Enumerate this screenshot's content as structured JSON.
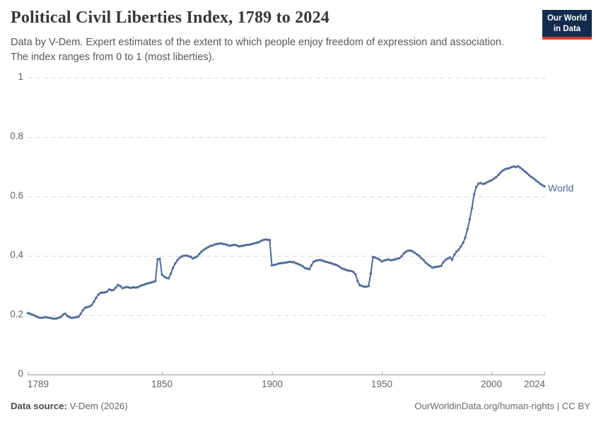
{
  "header": {
    "title": "Political Civil Liberties Index, 1789 to 2024",
    "subtitle_line1": "Data by V-Dem. Expert estimates of the extent to which people enjoy freedom of expression and association.",
    "subtitle_line2": "The index ranges from 0 to 1 (most liberties).",
    "logo": {
      "line1": "Our World",
      "line2": "in Data",
      "bg_color": "#132c4d",
      "accent_color": "#d63c2f"
    }
  },
  "footer": {
    "source_label": "Data source:",
    "source_value": " V-Dem (2026)",
    "link_text": "OurWorldinData.org/human-rights | CC BY"
  },
  "chart_data": {
    "type": "line",
    "title": "Political Civil Liberties Index, 1789 to 2024",
    "xlabel": "",
    "ylabel": "",
    "xlim": [
      1789,
      2024
    ],
    "ylim": [
      0,
      1
    ],
    "grid": "horizontal-dashed",
    "legend_position": "end-of-line",
    "yticks": [
      "1",
      "0.8",
      "0.6",
      "0.4",
      "0.2",
      "0"
    ],
    "xticks": [
      "1789",
      "1850",
      "1900",
      "1950",
      "2000",
      "2024"
    ],
    "line_color": "#4c6a9c",
    "marker": "dot-every-year",
    "series": [
      {
        "name": "World",
        "x_start_year": 1789,
        "x_step": 1,
        "values": [
          0.207,
          0.205,
          0.202,
          0.199,
          0.195,
          0.192,
          0.191,
          0.192,
          0.193,
          0.192,
          0.191,
          0.189,
          0.188,
          0.189,
          0.191,
          0.194,
          0.202,
          0.205,
          0.197,
          0.193,
          0.191,
          0.192,
          0.193,
          0.195,
          0.204,
          0.217,
          0.225,
          0.227,
          0.229,
          0.234,
          0.245,
          0.258,
          0.269,
          0.275,
          0.276,
          0.277,
          0.279,
          0.287,
          0.284,
          0.285,
          0.293,
          0.302,
          0.298,
          0.291,
          0.293,
          0.295,
          0.293,
          0.292,
          0.294,
          0.293,
          0.294,
          0.298,
          0.301,
          0.303,
          0.306,
          0.308,
          0.31,
          0.312,
          0.315,
          0.388,
          0.39,
          0.336,
          0.33,
          0.326,
          0.324,
          0.34,
          0.36,
          0.374,
          0.385,
          0.393,
          0.398,
          0.4,
          0.401,
          0.399,
          0.397,
          0.391,
          0.394,
          0.398,
          0.406,
          0.414,
          0.42,
          0.425,
          0.429,
          0.433,
          0.435,
          0.438,
          0.44,
          0.441,
          0.442,
          0.44,
          0.438,
          0.436,
          0.434,
          0.436,
          0.437,
          0.435,
          0.432,
          0.433,
          0.434,
          0.436,
          0.437,
          0.438,
          0.44,
          0.442,
          0.444,
          0.446,
          0.45,
          0.453,
          0.455,
          0.454,
          0.453,
          0.368,
          0.369,
          0.371,
          0.374,
          0.375,
          0.376,
          0.377,
          0.378,
          0.38,
          0.379,
          0.378,
          0.375,
          0.372,
          0.369,
          0.365,
          0.359,
          0.357,
          0.355,
          0.368,
          0.38,
          0.383,
          0.385,
          0.386,
          0.384,
          0.381,
          0.379,
          0.377,
          0.375,
          0.372,
          0.37,
          0.367,
          0.362,
          0.357,
          0.355,
          0.352,
          0.35,
          0.349,
          0.346,
          0.338,
          0.315,
          0.301,
          0.298,
          0.296,
          0.296,
          0.298,
          0.34,
          0.396,
          0.394,
          0.391,
          0.387,
          0.381,
          0.384,
          0.386,
          0.388,
          0.385,
          0.386,
          0.388,
          0.39,
          0.392,
          0.398,
          0.408,
          0.414,
          0.417,
          0.418,
          0.415,
          0.41,
          0.405,
          0.4,
          0.392,
          0.386,
          0.377,
          0.371,
          0.366,
          0.36,
          0.362,
          0.363,
          0.364,
          0.366,
          0.378,
          0.386,
          0.391,
          0.394,
          0.387,
          0.404,
          0.414,
          0.421,
          0.432,
          0.444,
          0.462,
          0.49,
          0.523,
          0.56,
          0.607,
          0.632,
          0.643,
          0.645,
          0.642,
          0.644,
          0.648,
          0.652,
          0.655,
          0.66,
          0.665,
          0.672,
          0.68,
          0.687,
          0.691,
          0.694,
          0.695,
          0.699,
          0.701,
          0.699,
          0.702,
          0.697,
          0.691,
          0.685,
          0.679,
          0.672,
          0.666,
          0.661,
          0.655,
          0.649,
          0.643,
          0.638,
          0.634
        ]
      }
    ]
  }
}
